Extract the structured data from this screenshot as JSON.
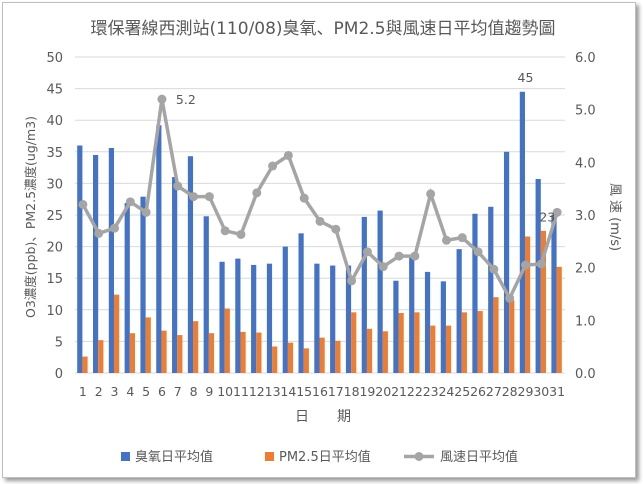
{
  "chart_data": {
    "type": "bar+line",
    "title": "環保署線西測站(110/08)臭氧、PM2.5與風速日平均值趨勢圖",
    "xlabel": "日　　期",
    "ylabel_left": "O3濃度(ppb)、PM2.5濃度(ug/m3)",
    "ylabel_right": "風 速 (m/s)",
    "ylim_left": [
      0,
      50
    ],
    "ylim_right": [
      0,
      6
    ],
    "yticks_left": [
      "0",
      "5",
      "10",
      "15",
      "20",
      "25",
      "30",
      "35",
      "40",
      "45",
      "50"
    ],
    "yticks_right": [
      "0.0",
      "1.0",
      "2.0",
      "3.0",
      "4.0",
      "5.0",
      "6.0"
    ],
    "grid": true,
    "legend_placement": "bottom",
    "categories": [
      "1",
      "2",
      "3",
      "4",
      "5",
      "6",
      "7",
      "8",
      "9",
      "10",
      "11",
      "12",
      "13",
      "14",
      "15",
      "16",
      "17",
      "18",
      "19",
      "20",
      "21",
      "22",
      "23",
      "24",
      "25",
      "26",
      "27",
      "28",
      "29",
      "30",
      "31"
    ],
    "series": [
      {
        "name": "臭氧日平均值",
        "type": "bar",
        "axis": "left",
        "color": "#4472c4",
        "values": [
          36,
          34.5,
          35.6,
          26.9,
          27.9,
          39.2,
          31,
          34.3,
          24.8,
          17.6,
          18.1,
          17.1,
          17.3,
          20,
          22.1,
          17.3,
          17,
          17,
          24.7,
          25.7,
          14.6,
          18.4,
          16,
          14.5,
          19.6,
          25.2,
          26.3,
          35,
          44.5,
          30.7,
          25
        ]
      },
      {
        "name": "PM2.5日平均值",
        "type": "bar",
        "axis": "left",
        "color": "#ed7d31",
        "values": [
          2.6,
          5.2,
          12.4,
          6.3,
          8.8,
          6.7,
          6,
          8.2,
          6.3,
          10.2,
          6.5,
          6.4,
          4.2,
          4.8,
          3.9,
          5.6,
          5.1,
          9.6,
          7,
          6.6,
          9.5,
          9.6,
          7.5,
          7.5,
          9.6,
          9.8,
          12,
          11.5,
          21.6,
          22.5,
          16.8
        ]
      },
      {
        "name": "風速日平均值",
        "type": "line",
        "axis": "right",
        "color": "#a5a5a5",
        "values": [
          3.2,
          2.65,
          2.75,
          3.25,
          3.05,
          5.2,
          3.55,
          3.35,
          3.35,
          2.7,
          2.63,
          3.42,
          3.93,
          4.13,
          3.32,
          2.88,
          2.73,
          1.75,
          2.3,
          2.02,
          2.22,
          2.22,
          3.4,
          2.52,
          2.57,
          2.3,
          1.97,
          1.42,
          2.05,
          2.07,
          3.05
        ]
      }
    ],
    "annotations": [
      {
        "text": "5.2",
        "series": 2,
        "day": "6"
      },
      {
        "text": "45",
        "series": 0,
        "day": "29"
      },
      {
        "text": "23",
        "series": 1,
        "day": "30"
      }
    ]
  }
}
